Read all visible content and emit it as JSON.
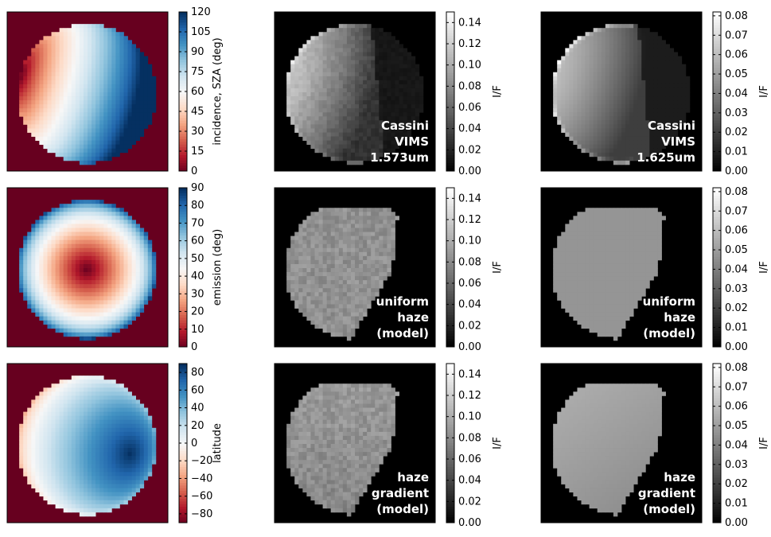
{
  "colors": {
    "rdbu_stops": [
      "#67001f",
      "#b2182b",
      "#d6604d",
      "#f4a582",
      "#fddbc7",
      "#f7f7f7",
      "#d1e5f0",
      "#92c5de",
      "#4393c3",
      "#2166ac",
      "#053061"
    ],
    "background_dark": "#000000",
    "text_on_dark": "#ffffff"
  },
  "chart_data": [
    {
      "id": "incidence",
      "type": "heatmap",
      "colormap": "RdBu",
      "colorbar": {
        "label": "incidence, SZA (deg)",
        "range": [
          0,
          120
        ],
        "ticks": [
          "0",
          "15",
          "30",
          "45",
          "60",
          "75",
          "90",
          "105",
          "120"
        ]
      }
    },
    {
      "id": "vims_1573",
      "type": "heatmap",
      "colormap": "gray",
      "annotation": [
        "Cassini",
        "VIMS",
        "1.573um"
      ],
      "colorbar": {
        "label": "I/F",
        "range": [
          0,
          0.15
        ],
        "ticks": [
          "0.00",
          "0.02",
          "0.04",
          "0.06",
          "0.08",
          "0.10",
          "0.12",
          "0.14"
        ]
      }
    },
    {
      "id": "vims_1625",
      "type": "heatmap",
      "colormap": "gray",
      "annotation": [
        "Cassini",
        "VIMS",
        "1.625um"
      ],
      "colorbar": {
        "label": "I/F",
        "range": [
          0,
          0.082
        ],
        "ticks": [
          "0.00",
          "0.01",
          "0.02",
          "0.03",
          "0.04",
          "0.05",
          "0.06",
          "0.07",
          "0.08"
        ]
      }
    },
    {
      "id": "emission",
      "type": "heatmap",
      "colormap": "RdBu",
      "colorbar": {
        "label": "emission (deg)",
        "range": [
          0,
          90
        ],
        "ticks": [
          "0",
          "10",
          "20",
          "30",
          "40",
          "50",
          "60",
          "70",
          "80",
          "90"
        ]
      }
    },
    {
      "id": "uniform_1573",
      "type": "heatmap",
      "colormap": "gray",
      "annotation": [
        "uniform",
        "haze",
        "(model)"
      ],
      "colorbar": {
        "label": "I/F",
        "range": [
          0,
          0.15
        ],
        "ticks": [
          "0.00",
          "0.02",
          "0.04",
          "0.06",
          "0.08",
          "0.10",
          "0.12",
          "0.14"
        ]
      }
    },
    {
      "id": "uniform_1625",
      "type": "heatmap",
      "colormap": "gray",
      "annotation": [
        "uniform",
        "haze",
        "(model)"
      ],
      "colorbar": {
        "label": "I/F",
        "range": [
          0,
          0.082
        ],
        "ticks": [
          "0.00",
          "0.01",
          "0.02",
          "0.03",
          "0.04",
          "0.05",
          "0.06",
          "0.07",
          "0.08"
        ]
      }
    },
    {
      "id": "latitude",
      "type": "heatmap",
      "colormap": "RdBu",
      "colorbar": {
        "label": "latitude",
        "range": [
          -90,
          90
        ],
        "ticks": [
          "−80",
          "−60",
          "−40",
          "−20",
          "0",
          "20",
          "40",
          "60",
          "80"
        ]
      }
    },
    {
      "id": "gradient_1573",
      "type": "heatmap",
      "colormap": "gray",
      "annotation": [
        "haze",
        "gradient",
        "(model)"
      ],
      "colorbar": {
        "label": "I/F",
        "range": [
          0,
          0.15
        ],
        "ticks": [
          "0.00",
          "0.02",
          "0.04",
          "0.06",
          "0.08",
          "0.10",
          "0.12",
          "0.14"
        ]
      }
    },
    {
      "id": "gradient_1625",
      "type": "heatmap",
      "colormap": "gray",
      "annotation": [
        "haze",
        "gradient",
        "(model)"
      ],
      "colorbar": {
        "label": "I/F",
        "range": [
          0,
          0.082
        ],
        "ticks": [
          "0.00",
          "0.01",
          "0.02",
          "0.03",
          "0.04",
          "0.05",
          "0.06",
          "0.07",
          "0.08"
        ]
      }
    }
  ]
}
